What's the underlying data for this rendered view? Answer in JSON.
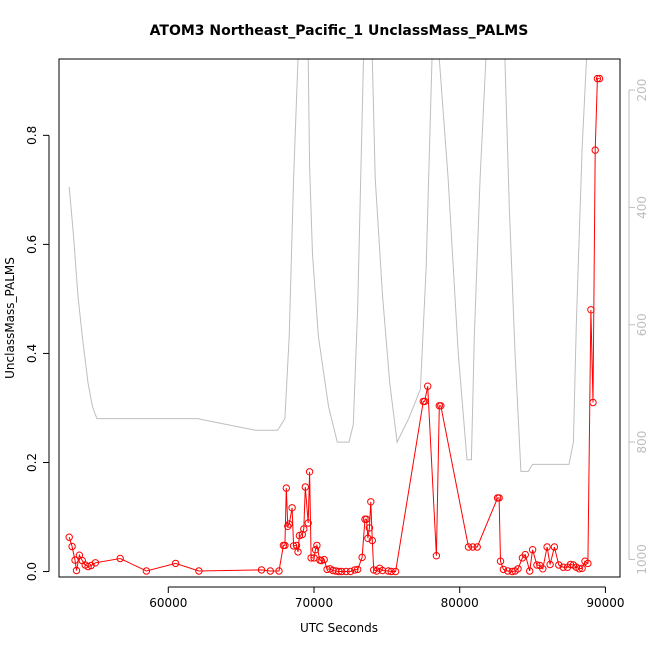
{
  "chart_data": {
    "type": "line",
    "title": "ATOM3 Northeast_Pacific_1 UnclassMass_PALMS",
    "xlabel": "UTC Seconds",
    "ylabel": "UnclassMass_PALMS",
    "xlim": [
      52500,
      91000
    ],
    "ylim": [
      -0.01,
      0.94
    ],
    "x_ticks": [
      60000,
      70000,
      80000,
      90000
    ],
    "y_ticks": [
      0.0,
      0.2,
      0.4,
      0.6,
      0.8
    ],
    "x_tick_labels": [
      "60000",
      "70000",
      "80000",
      "90000"
    ],
    "y_tick_labels": [
      "0.0",
      "0.2",
      "0.4",
      "0.6",
      "0.8"
    ],
    "right_axis": {
      "ticks": [
        200,
        400,
        600,
        800,
        1000
      ],
      "tick_labels": [
        "200",
        "400",
        "600",
        "800",
        "1000"
      ],
      "inverted": true,
      "range": [
        1030,
        147
      ],
      "color": "#bebebe"
    },
    "grid": false,
    "legend": "none",
    "series": [
      {
        "color": "#ff0000",
        "style": "line-with-open-circles",
        "points": [
          [
            53200,
            0.063
          ],
          [
            53400,
            0.046
          ],
          [
            53600,
            0.021
          ],
          [
            53700,
            0.002
          ],
          [
            53900,
            0.03
          ],
          [
            54100,
            0.02
          ],
          [
            54300,
            0.012
          ],
          [
            54500,
            0.009
          ],
          [
            54700,
            0.011
          ],
          [
            55000,
            0.016
          ],
          [
            56700,
            0.024
          ],
          [
            58500,
            0.001
          ],
          [
            60500,
            0.015
          ],
          [
            62100,
            0.001
          ],
          [
            66400,
            0.003
          ],
          [
            67000,
            0.001
          ],
          [
            67600,
            0.001
          ],
          [
            67900,
            0.048
          ],
          [
            68000,
            0.048
          ],
          [
            68100,
            0.153
          ],
          [
            68200,
            0.083
          ],
          [
            68300,
            0.087
          ],
          [
            68500,
            0.117
          ],
          [
            68600,
            0.047
          ],
          [
            68800,
            0.048
          ],
          [
            68900,
            0.036
          ],
          [
            69000,
            0.066
          ],
          [
            69200,
            0.068
          ],
          [
            69300,
            0.078
          ],
          [
            69400,
            0.155
          ],
          [
            69600,
            0.089
          ],
          [
            69700,
            0.183
          ],
          [
            69800,
            0.025
          ],
          [
            70000,
            0.025
          ],
          [
            70100,
            0.04
          ],
          [
            70200,
            0.048
          ],
          [
            70400,
            0.021
          ],
          [
            70500,
            0.02
          ],
          [
            70700,
            0.022
          ],
          [
            70900,
            0.004
          ],
          [
            71100,
            0.005
          ],
          [
            71300,
            0.002
          ],
          [
            71500,
            0.001
          ],
          [
            71700,
            0.0
          ],
          [
            71900,
            0.0
          ],
          [
            72200,
            0.0
          ],
          [
            72500,
            0.0
          ],
          [
            72800,
            0.003
          ],
          [
            73000,
            0.004
          ],
          [
            73300,
            0.026
          ],
          [
            73500,
            0.096
          ],
          [
            73600,
            0.096
          ],
          [
            73700,
            0.061
          ],
          [
            73800,
            0.08
          ],
          [
            73900,
            0.128
          ],
          [
            74000,
            0.057
          ],
          [
            74100,
            0.003
          ],
          [
            74300,
            0.001
          ],
          [
            74500,
            0.006
          ],
          [
            74700,
            0.002
          ],
          [
            75100,
            0.001
          ],
          [
            75300,
            0.0
          ],
          [
            75600,
            0.0
          ],
          [
            77500,
            0.312
          ],
          [
            77600,
            0.312
          ],
          [
            77800,
            0.34
          ],
          [
            78400,
            0.029
          ],
          [
            78600,
            0.304
          ],
          [
            78700,
            0.304
          ],
          [
            80600,
            0.045
          ],
          [
            80900,
            0.045
          ],
          [
            81200,
            0.045
          ],
          [
            82600,
            0.135
          ],
          [
            82700,
            0.135
          ],
          [
            82800,
            0.019
          ],
          [
            83000,
            0.004
          ],
          [
            83300,
            0.001
          ],
          [
            83600,
            0.0
          ],
          [
            83800,
            0.001
          ],
          [
            84000,
            0.005
          ],
          [
            84300,
            0.025
          ],
          [
            84500,
            0.031
          ],
          [
            84800,
            0.001
          ],
          [
            85000,
            0.04
          ],
          [
            85300,
            0.012
          ],
          [
            85500,
            0.011
          ],
          [
            85700,
            0.005
          ],
          [
            86000,
            0.045
          ],
          [
            86200,
            0.013
          ],
          [
            86500,
            0.045
          ],
          [
            86800,
            0.012
          ],
          [
            87100,
            0.008
          ],
          [
            87400,
            0.008
          ],
          [
            87600,
            0.013
          ],
          [
            87800,
            0.012
          ],
          [
            88000,
            0.008
          ],
          [
            88200,
            0.005
          ],
          [
            88400,
            0.006
          ],
          [
            88600,
            0.019
          ],
          [
            88800,
            0.015
          ],
          [
            89000,
            0.48
          ],
          [
            89150,
            0.31
          ],
          [
            89300,
            0.773
          ],
          [
            89450,
            0.904
          ],
          [
            89600,
            0.904
          ]
        ]
      },
      {
        "color": "#bebebe",
        "axis": "right",
        "style": "line",
        "points": [
          [
            53200,
            365
          ],
          [
            53500,
            450
          ],
          [
            53800,
            550
          ],
          [
            54100,
            620
          ],
          [
            54500,
            700
          ],
          [
            54800,
            740
          ],
          [
            55100,
            760
          ],
          [
            56500,
            760
          ],
          [
            59000,
            760
          ],
          [
            62000,
            760
          ],
          [
            64000,
            770
          ],
          [
            66000,
            780
          ],
          [
            67500,
            780
          ],
          [
            68000,
            760
          ],
          [
            68300,
            620
          ],
          [
            68600,
            350
          ],
          [
            68900,
            147
          ],
          [
            69600,
            147
          ],
          [
            69700,
            330
          ],
          [
            69900,
            480
          ],
          [
            70300,
            620
          ],
          [
            71000,
            740
          ],
          [
            71600,
            800
          ],
          [
            72400,
            800
          ],
          [
            72700,
            770
          ],
          [
            73000,
            570
          ],
          [
            73400,
            147
          ],
          [
            74000,
            147
          ],
          [
            74200,
            350
          ],
          [
            74700,
            550
          ],
          [
            75200,
            700
          ],
          [
            75700,
            800
          ],
          [
            76500,
            760
          ],
          [
            77300,
            710
          ],
          [
            77700,
            500
          ],
          [
            78100,
            147
          ],
          [
            78600,
            147
          ],
          [
            79200,
            350
          ],
          [
            79900,
            650
          ],
          [
            80500,
            830
          ],
          [
            80800,
            830
          ],
          [
            81000,
            620
          ],
          [
            81400,
            350
          ],
          [
            81800,
            147
          ],
          [
            83100,
            147
          ],
          [
            83400,
            400
          ],
          [
            83800,
            650
          ],
          [
            84200,
            850
          ],
          [
            84700,
            850
          ],
          [
            85000,
            838
          ],
          [
            87500,
            838
          ],
          [
            87800,
            800
          ],
          [
            88000,
            600
          ],
          [
            88200,
            450
          ],
          [
            88400,
            300
          ],
          [
            88700,
            147
          ]
        ]
      }
    ]
  }
}
